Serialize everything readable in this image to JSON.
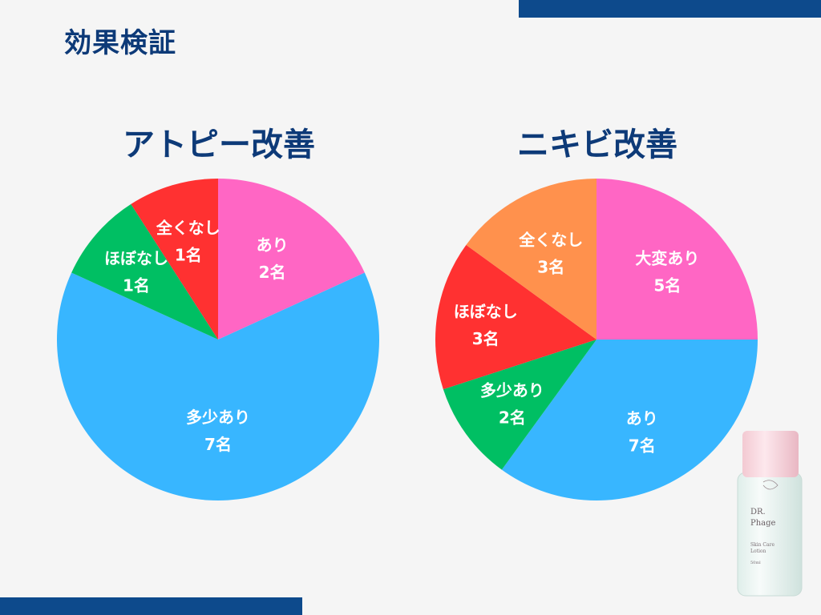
{
  "page": {
    "title": "効果検証"
  },
  "colors": {
    "navy": "#0d4a8c",
    "title": "#0d3a78"
  },
  "chart_data": [
    {
      "type": "pie",
      "title": "アトピー改善",
      "unit": "名",
      "slices": [
        {
          "label": "あり",
          "value": 2,
          "value_label": "2名",
          "color": "#ff66c4"
        },
        {
          "label": "多少あり",
          "value": 7,
          "value_label": "7名",
          "color": "#38b6ff"
        },
        {
          "label": "ほぼなし",
          "value": 1,
          "value_label": "1名",
          "color": "#00bf63"
        },
        {
          "label": "全くなし",
          "value": 1,
          "value_label": "1名",
          "color": "#ff3131"
        }
      ]
    },
    {
      "type": "pie",
      "title": "ニキビ改善",
      "unit": "名",
      "slices": [
        {
          "label": "大変あり",
          "value": 5,
          "value_label": "5名",
          "color": "#ff66c4"
        },
        {
          "label": "あり",
          "value": 7,
          "value_label": "7名",
          "color": "#38b6ff"
        },
        {
          "label": "多少あり",
          "value": 2,
          "value_label": "2名",
          "color": "#00bf63"
        },
        {
          "label": "ほぼなし",
          "value": 3,
          "value_label": "3名",
          "color": "#ff3131"
        },
        {
          "label": "全くなし",
          "value": 3,
          "value_label": "3名",
          "color": "#ff914d"
        }
      ]
    }
  ],
  "product": {
    "brand_line1": "DR.",
    "brand_line2": "Phage",
    "desc_line1": "Skin Care",
    "desc_line2": "Lotion",
    "volume": "50ml"
  }
}
